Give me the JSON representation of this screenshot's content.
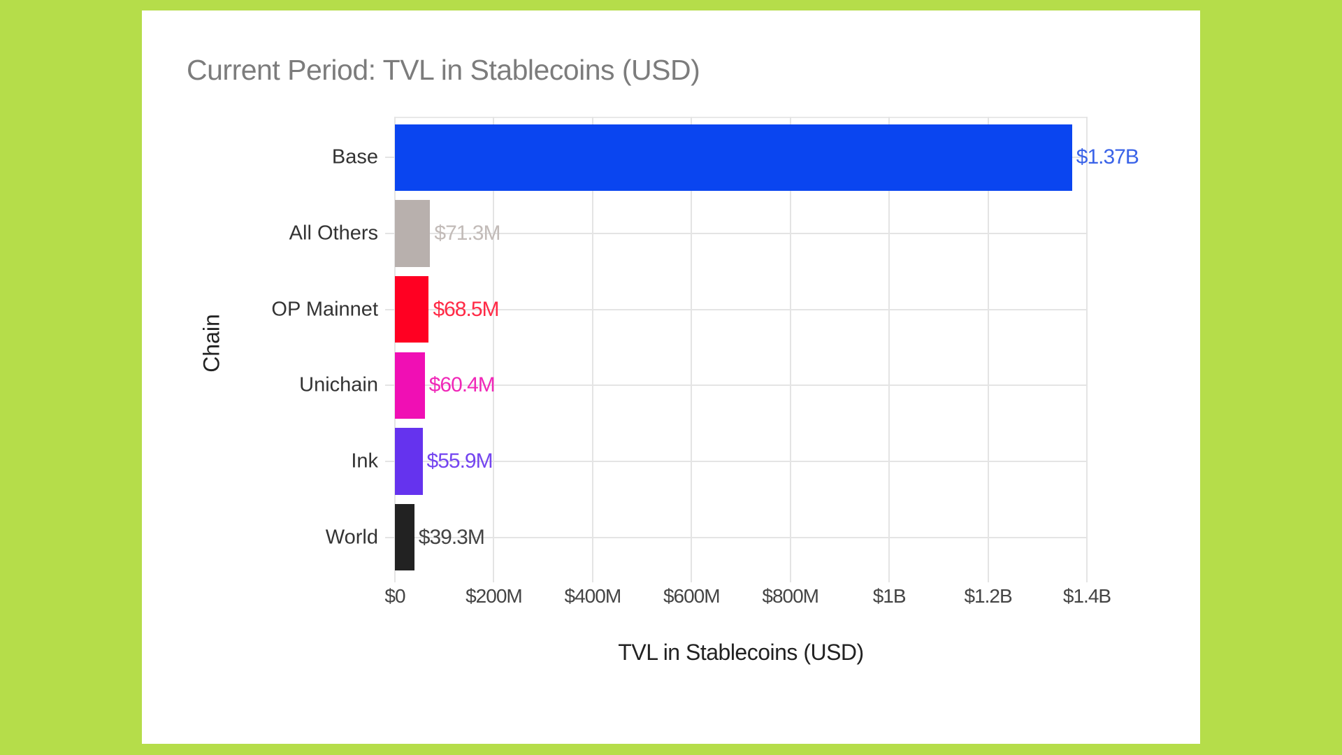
{
  "background_color": "#b5dd4a",
  "chart_data": {
    "type": "bar",
    "orientation": "horizontal",
    "title": "Current Period: TVL in Stablecoins (USD)",
    "xlabel": "TVL in Stablecoins (USD)",
    "ylabel": "Chain",
    "xlim": [
      0,
      1400000000
    ],
    "grid": true,
    "legend": "none",
    "x_ticks": [
      "$0",
      "$200M",
      "$400M",
      "$600M",
      "$800M",
      "$1B",
      "$1.2B",
      "$1.4B"
    ],
    "categories": [
      "Base",
      "All Others",
      "OP Mainnet",
      "Unichain",
      "Ink",
      "World"
    ],
    "values": [
      1370000000,
      71300000,
      68500000,
      60400000,
      55900000,
      39300000
    ],
    "value_labels": [
      "$1.37B",
      "$71.3M",
      "$68.5M",
      "$60.4M",
      "$55.9M",
      "$39.3M"
    ],
    "colors": [
      "#0a45f0",
      "#b8b0ad",
      "#ff0022",
      "#f00fb4",
      "#6533ee",
      "#222222"
    ],
    "label_colors": [
      "#3a63e8",
      "#c2bbb8",
      "#ff2a46",
      "#f028b8",
      "#7445f0",
      "#444444"
    ]
  }
}
